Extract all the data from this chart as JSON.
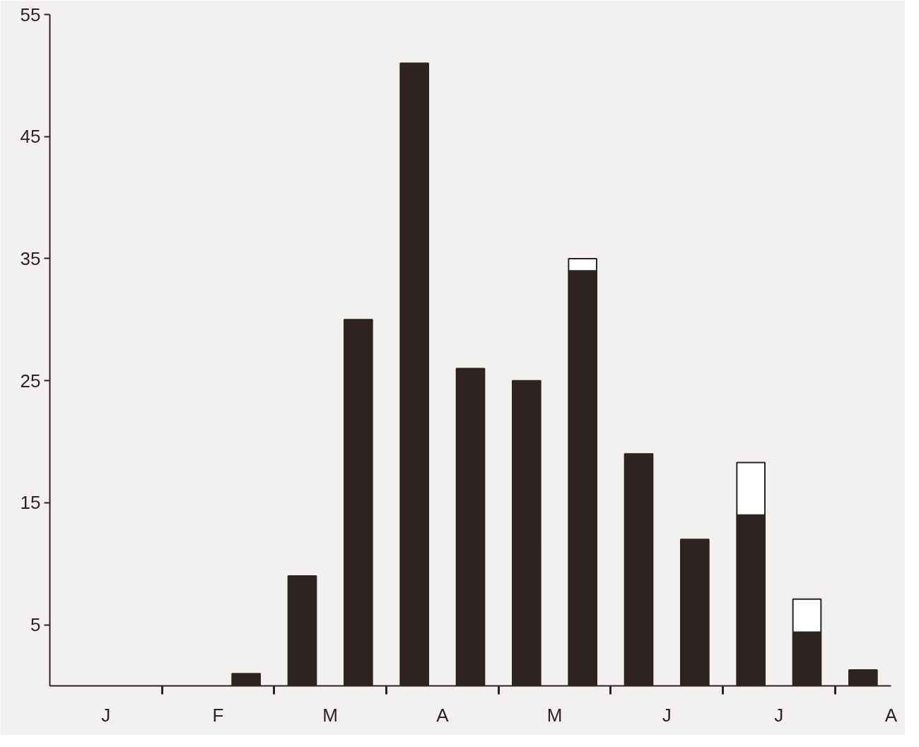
{
  "chart_data": {
    "type": "bar",
    "stacked": true,
    "categories": [
      null,
      null,
      null,
      null,
      null,
      null,
      null,
      null,
      null,
      null,
      null,
      null,
      null,
      null,
      null
    ],
    "series": [
      {
        "color": "#2e2223",
        "values": [
          null,
          null,
          null,
          1,
          9,
          30,
          51,
          26,
          25,
          34,
          19,
          12,
          14,
          4.4,
          1.3
        ]
      },
      {
        "color": "#ffffff",
        "values": [
          null,
          null,
          null,
          null,
          null,
          null,
          null,
          null,
          null,
          1,
          null,
          null,
          4.3,
          2.7,
          null
        ]
      }
    ],
    "annotations": [
      "J",
      "F",
      "M",
      "A",
      "M",
      "J",
      "J",
      "A"
    ],
    "ylim": [
      0,
      55
    ],
    "yticks": [
      5,
      15,
      25,
      35,
      45,
      55
    ]
  }
}
